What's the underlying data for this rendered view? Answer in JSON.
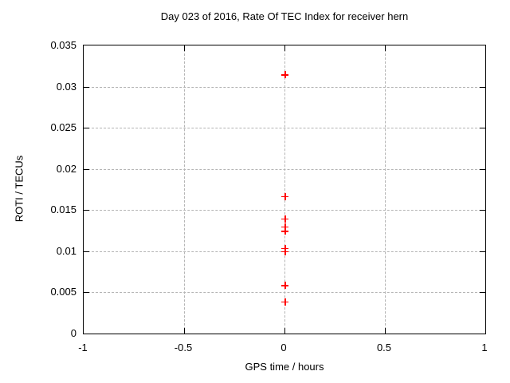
{
  "title": "Day 023 of 2016, Rate Of TEC Index for receiver hern",
  "chart_data": {
    "type": "scatter",
    "title": "Day 023 of 2016, Rate Of TEC Index for receiver hern",
    "xlabel": "GPS time / hours",
    "ylabel": "ROTI / TECUs",
    "xlim": [
      -1,
      1
    ],
    "ylim": [
      0,
      0.035
    ],
    "xticks": [
      -1,
      -0.5,
      0,
      0.5,
      1
    ],
    "xtick_labels": [
      "-1",
      "-0.5",
      "0",
      "0.5",
      "1"
    ],
    "yticks": [
      0,
      0.005,
      0.01,
      0.015,
      0.02,
      0.025,
      0.03,
      0.035
    ],
    "ytick_labels": [
      "0",
      "0.005",
      "0.01",
      "0.015",
      "0.02",
      "0.025",
      "0.03",
      "0.035"
    ],
    "grid": true,
    "legend": "none",
    "marker": {
      "shape": "plus",
      "color": "#ff0000",
      "size": 9
    },
    "grid_color": "#b4b4b4",
    "frame_color": "#000000",
    "series": [
      {
        "name": "ROTI",
        "points": [
          [
            0,
            0.0315
          ],
          [
            0,
            0.0167
          ],
          [
            0,
            0.014
          ],
          [
            0,
            0.013
          ],
          [
            0,
            0.0125
          ],
          [
            0,
            0.0104
          ],
          [
            0,
            0.01
          ],
          [
            0,
            0.0059
          ],
          [
            0,
            0.0039
          ]
        ]
      }
    ]
  }
}
